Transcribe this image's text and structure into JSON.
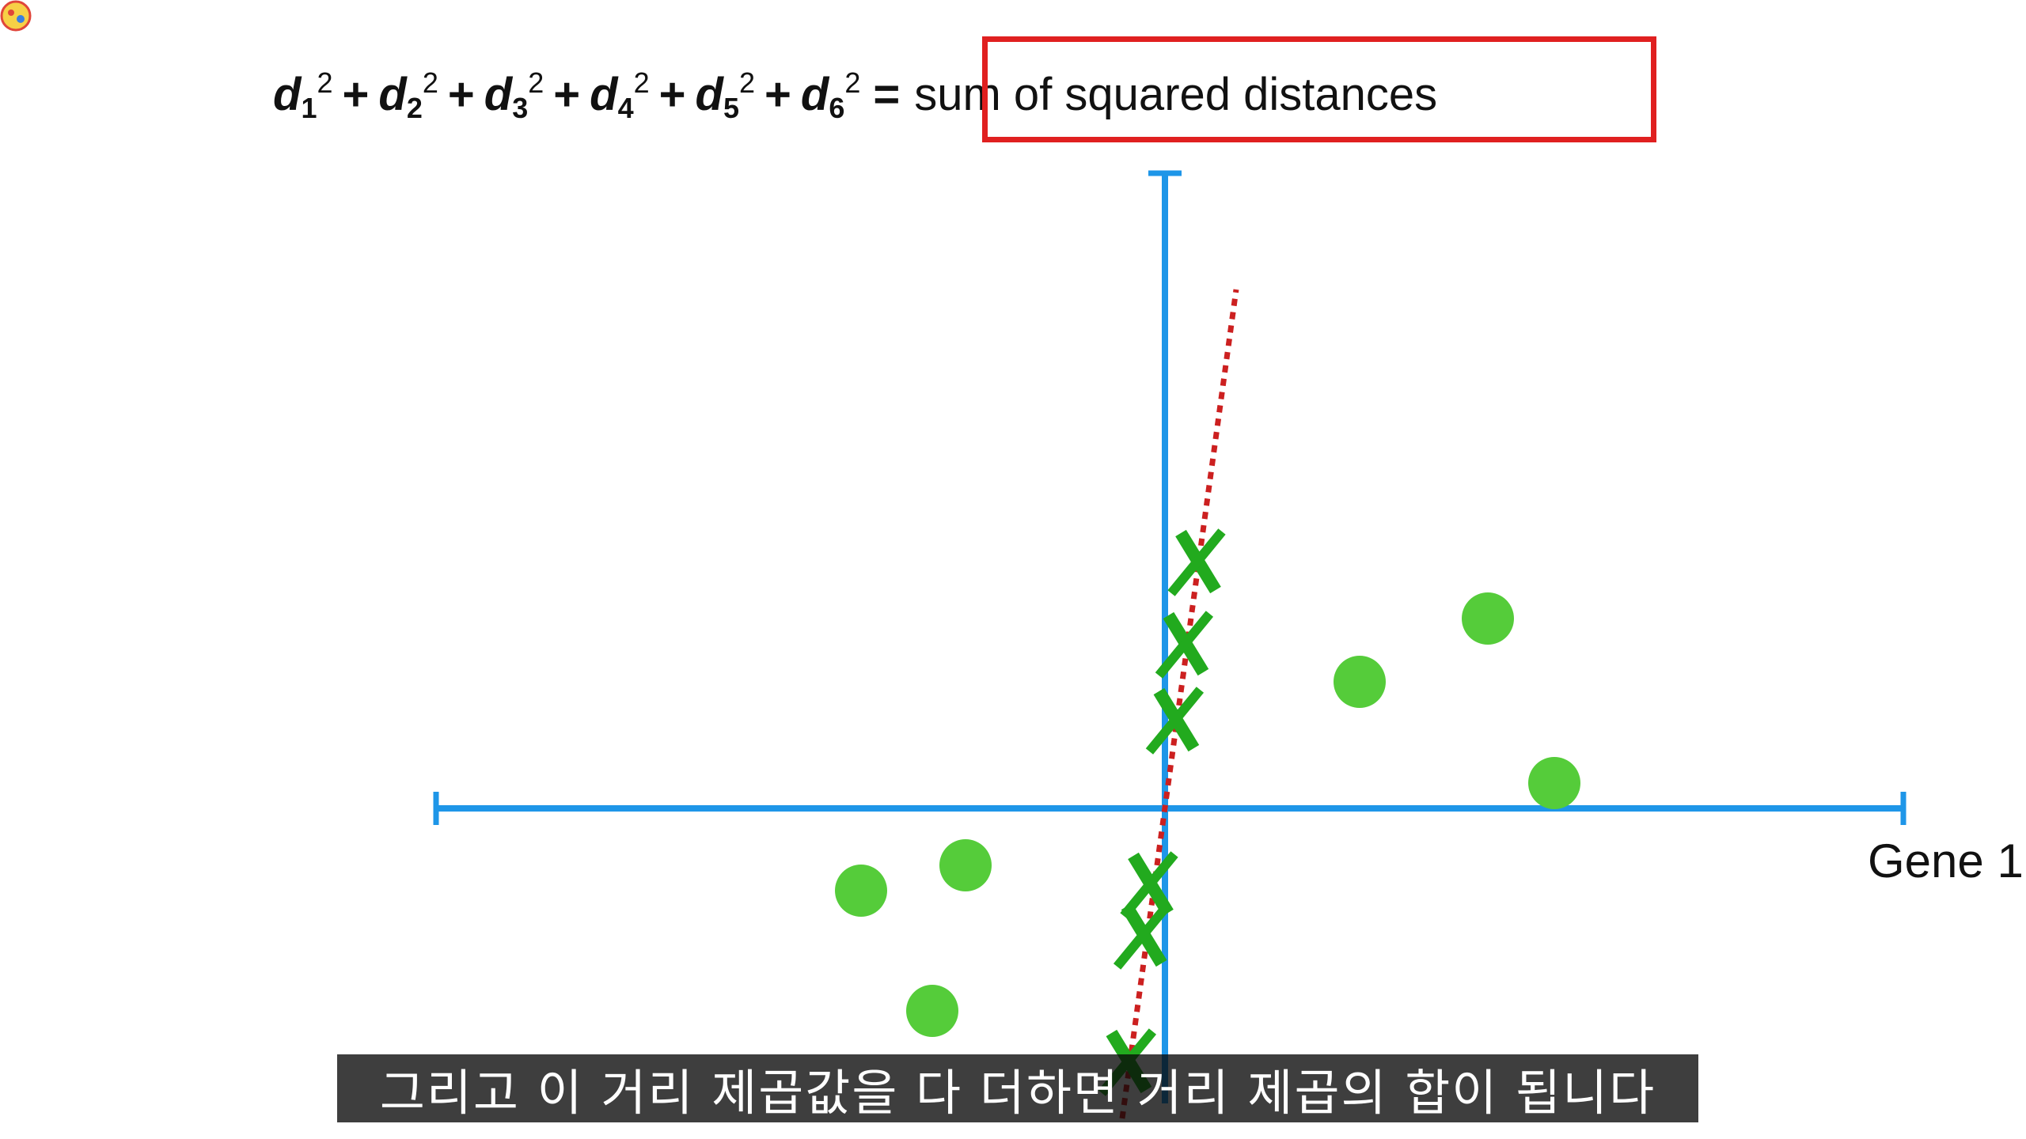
{
  "formula": {
    "terms": [
      {
        "base": "d",
        "sub": "1",
        "sup": "2"
      },
      {
        "base": "d",
        "sub": "2",
        "sup": "2"
      },
      {
        "base": "d",
        "sub": "3",
        "sup": "2"
      },
      {
        "base": "d",
        "sub": "4",
        "sup": "2"
      },
      {
        "base": "d",
        "sub": "5",
        "sup": "2"
      },
      {
        "base": "d",
        "sub": "6",
        "sup": "2"
      }
    ],
    "operator": "+",
    "equals": "=",
    "result": "sum of squared distances",
    "highlight_color": "#e02020"
  },
  "axes": {
    "x_label": "Gene 1",
    "color": "#1e96e8"
  },
  "chart_data": {
    "type": "scatter",
    "xlabel": "Gene 1",
    "ylabel": "",
    "xlim": [
      -8,
      8
    ],
    "ylim": [
      -3,
      6.5
    ],
    "point_color": "#55cc3a",
    "projection_color": "#22aa1e",
    "fit_line_color": "#cc2020",
    "points": [
      {
        "x": -3.2,
        "y": -0.65
      },
      {
        "x": -2.1,
        "y": -0.45
      },
      {
        "x": -2.45,
        "y": -1.6
      },
      {
        "x": 2.05,
        "y": 1.0
      },
      {
        "x": 3.4,
        "y": 1.5
      },
      {
        "x": 4.1,
        "y": 0.2
      }
    ],
    "projections": [
      {
        "x": 0.35,
        "y": 1.95
      },
      {
        "x": 0.22,
        "y": 1.3
      },
      {
        "x": 0.12,
        "y": 0.7
      },
      {
        "x": -0.15,
        "y": -0.6
      },
      {
        "x": -0.22,
        "y": -1.0
      },
      {
        "x": -0.38,
        "y": -2.0
      }
    ],
    "fit_line": {
      "x1": -0.45,
      "y1": -2.45,
      "x2": 0.75,
      "y2": 4.1
    }
  },
  "subtitle": "그리고 이 거리 제곱값을 다 더하면 거리 제곱의 합이 됩니다",
  "logo": {
    "icon": "channel-logo-icon"
  }
}
